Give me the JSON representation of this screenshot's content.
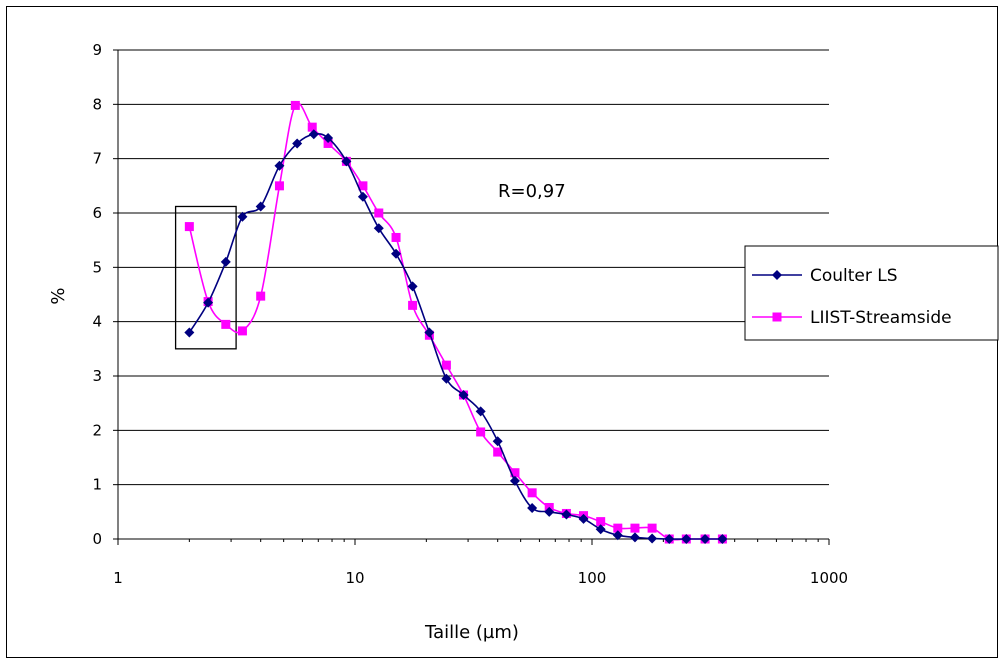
{
  "chart_data": {
    "type": "line",
    "title": "",
    "xlabel": "Taille (µm)",
    "ylabel": "%",
    "xscale": "log",
    "xlim": [
      1,
      1000
    ],
    "ylim": [
      0,
      9
    ],
    "x_ticks": [
      "1",
      "10",
      "100",
      "1000"
    ],
    "y_ticks": [
      "0",
      "1",
      "2",
      "3",
      "4",
      "5",
      "6",
      "7",
      "8",
      "9"
    ],
    "grid": "horizontal",
    "legend_position": "right",
    "annotation": "R=0,97",
    "highlight_box": {
      "x_range": [
        1.75,
        3.15
      ],
      "y_range": [
        3.5,
        6.12
      ]
    },
    "series": [
      {
        "name": "Coulter LS",
        "color": "#000080",
        "marker": "diamond",
        "points": [
          [
            2.0,
            3.8
          ],
          [
            2.4,
            4.35
          ],
          [
            2.85,
            5.1
          ],
          [
            3.35,
            5.93
          ],
          [
            4.0,
            6.12
          ],
          [
            4.8,
            6.87
          ],
          [
            5.7,
            7.28
          ],
          [
            6.7,
            7.45
          ],
          [
            7.7,
            7.38
          ],
          [
            9.2,
            6.95
          ],
          [
            10.8,
            6.3
          ],
          [
            12.6,
            5.72
          ],
          [
            14.9,
            5.25
          ],
          [
            17.5,
            4.65
          ],
          [
            20.6,
            3.8
          ],
          [
            24.3,
            2.95
          ],
          [
            28.7,
            2.65
          ],
          [
            33.9,
            2.35
          ],
          [
            40.0,
            1.8
          ],
          [
            47.3,
            1.07
          ],
          [
            55.9,
            0.57
          ],
          [
            66.0,
            0.5
          ],
          [
            78.0,
            0.45
          ],
          [
            92.1,
            0.37
          ],
          [
            108.8,
            0.18
          ],
          [
            128.5,
            0.07
          ],
          [
            151.8,
            0.03
          ],
          [
            179.3,
            0.01
          ],
          [
            211.8,
            0.0
          ],
          [
            250.0,
            0.0
          ],
          [
            300.0,
            0.0
          ],
          [
            355.0,
            0.0
          ]
        ]
      },
      {
        "name": "LIIST-Streamside",
        "color": "#ff00ff",
        "marker": "square",
        "points": [
          [
            2.0,
            5.75
          ],
          [
            2.4,
            4.37
          ],
          [
            2.85,
            3.95
          ],
          [
            3.35,
            3.83
          ],
          [
            4.0,
            4.47
          ],
          [
            4.8,
            6.5
          ],
          [
            5.6,
            7.98
          ],
          [
            6.6,
            7.58
          ],
          [
            7.7,
            7.28
          ],
          [
            9.2,
            6.95
          ],
          [
            10.8,
            6.5
          ],
          [
            12.6,
            6.0
          ],
          [
            14.9,
            5.55
          ],
          [
            17.5,
            4.3
          ],
          [
            20.6,
            3.75
          ],
          [
            24.3,
            3.2
          ],
          [
            28.7,
            2.65
          ],
          [
            33.9,
            1.97
          ],
          [
            40.0,
            1.6
          ],
          [
            47.3,
            1.22
          ],
          [
            55.9,
            0.85
          ],
          [
            66.0,
            0.58
          ],
          [
            78.0,
            0.47
          ],
          [
            92.1,
            0.43
          ],
          [
            108.8,
            0.32
          ],
          [
            128.5,
            0.2
          ],
          [
            151.8,
            0.2
          ],
          [
            179.3,
            0.2
          ],
          [
            211.8,
            0.0
          ],
          [
            250.0,
            0.0
          ],
          [
            300.0,
            0.0
          ],
          [
            355.0,
            0.0
          ]
        ]
      }
    ]
  }
}
